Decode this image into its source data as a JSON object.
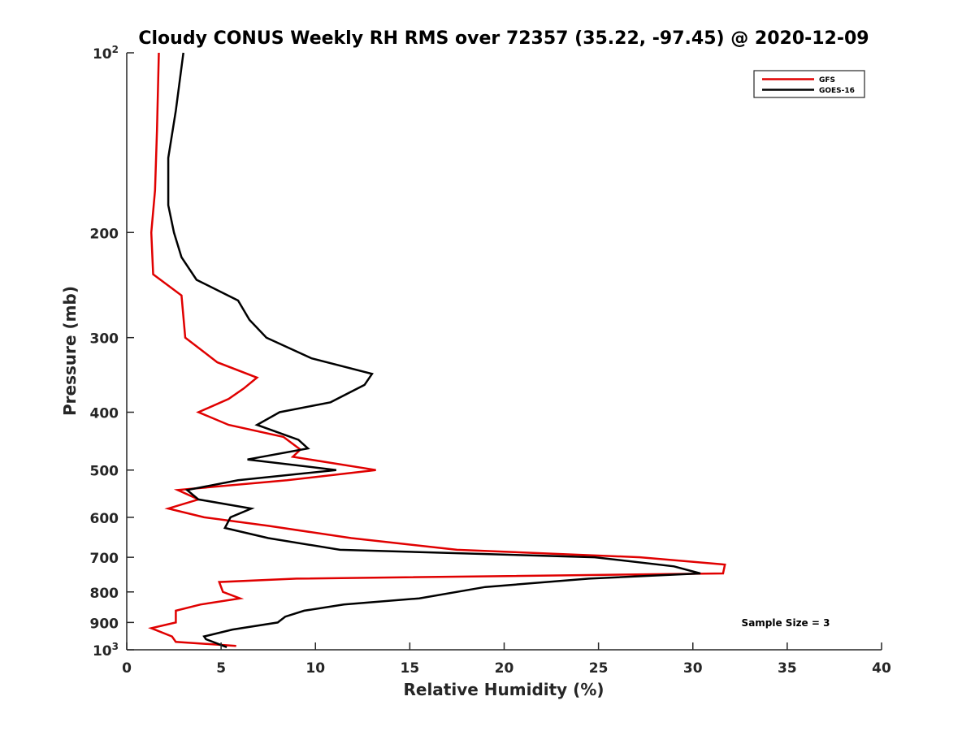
{
  "chart_data": {
    "type": "line",
    "title": "Cloudy CONUS Weekly RH RMS over 72357 (35.22, -97.45) @ 2020-12-09",
    "xlabel": "Relative Humidity (%)",
    "ylabel": "Pressure (mb)",
    "xlim": [
      0,
      40
    ],
    "ylim": [
      100,
      1000
    ],
    "y_scale": "log",
    "y_reversed": true,
    "grid": false,
    "legend_position": "top-right",
    "x_ticks": [
      "0",
      "5",
      "10",
      "15",
      "20",
      "25",
      "30",
      "35",
      "40"
    ],
    "y_ticks": [
      {
        "value": 100,
        "label": "10",
        "sup": "2"
      },
      {
        "value": 200,
        "label": "200",
        "sup": ""
      },
      {
        "value": 300,
        "label": "300",
        "sup": ""
      },
      {
        "value": 400,
        "label": "400",
        "sup": ""
      },
      {
        "value": 500,
        "label": "500",
        "sup": ""
      },
      {
        "value": 600,
        "label": "600",
        "sup": ""
      },
      {
        "value": 700,
        "label": "700",
        "sup": ""
      },
      {
        "value": 800,
        "label": "800",
        "sup": ""
      },
      {
        "value": 900,
        "label": "900",
        "sup": ""
      },
      {
        "value": 1000,
        "label": "10",
        "sup": "3"
      }
    ],
    "annotation": "Sample Size = 3",
    "series": [
      {
        "name": "GFS",
        "color": "#e00000",
        "points": [
          [
            1.7,
            100
          ],
          [
            1.6,
            135
          ],
          [
            1.5,
            170
          ],
          [
            1.3,
            200
          ],
          [
            1.4,
            235
          ],
          [
            2.9,
            255
          ],
          [
            3.1,
            300
          ],
          [
            4.8,
            330
          ],
          [
            6.9,
            350
          ],
          [
            6.2,
            365
          ],
          [
            5.4,
            380
          ],
          [
            3.8,
            400
          ],
          [
            5.4,
            420
          ],
          [
            8.3,
            440
          ],
          [
            9.2,
            462
          ],
          [
            8.8,
            475
          ],
          [
            13.2,
            500
          ],
          [
            8.5,
            520
          ],
          [
            2.7,
            540
          ],
          [
            3.8,
            560
          ],
          [
            2.2,
            580
          ],
          [
            4.1,
            600
          ],
          [
            7.5,
            620
          ],
          [
            11.9,
            650
          ],
          [
            17.5,
            680
          ],
          [
            27.2,
            700
          ],
          [
            31.7,
            720
          ],
          [
            31.6,
            745
          ],
          [
            9.0,
            760
          ],
          [
            4.9,
            770
          ],
          [
            5.1,
            800
          ],
          [
            6.0,
            820
          ],
          [
            3.9,
            840
          ],
          [
            2.6,
            860
          ],
          [
            2.6,
            900
          ],
          [
            1.3,
            920
          ],
          [
            2.4,
            950
          ],
          [
            2.6,
            970
          ],
          [
            5.8,
            985
          ]
        ]
      },
      {
        "name": "GOES-16",
        "color": "#000000",
        "points": [
          [
            3.0,
            100
          ],
          [
            2.6,
            125
          ],
          [
            2.2,
            150
          ],
          [
            2.2,
            180
          ],
          [
            2.5,
            200
          ],
          [
            2.9,
            220
          ],
          [
            3.7,
            240
          ],
          [
            5.9,
            260
          ],
          [
            6.5,
            280
          ],
          [
            7.4,
            300
          ],
          [
            9.8,
            325
          ],
          [
            13.0,
            345
          ],
          [
            12.6,
            360
          ],
          [
            10.8,
            385
          ],
          [
            8.1,
            400
          ],
          [
            6.9,
            420
          ],
          [
            9.1,
            445
          ],
          [
            9.6,
            460
          ],
          [
            6.4,
            480
          ],
          [
            11.1,
            500
          ],
          [
            5.9,
            520
          ],
          [
            3.2,
            540
          ],
          [
            3.8,
            560
          ],
          [
            6.6,
            580
          ],
          [
            5.5,
            600
          ],
          [
            5.2,
            625
          ],
          [
            7.5,
            650
          ],
          [
            11.3,
            680
          ],
          [
            24.8,
            700
          ],
          [
            29.0,
            725
          ],
          [
            30.4,
            745
          ],
          [
            24.5,
            760
          ],
          [
            19.0,
            785
          ],
          [
            15.5,
            820
          ],
          [
            11.5,
            840
          ],
          [
            9.4,
            860
          ],
          [
            8.4,
            880
          ],
          [
            8.0,
            900
          ],
          [
            5.6,
            925
          ],
          [
            4.1,
            950
          ],
          [
            4.2,
            960
          ],
          [
            5.3,
            990
          ]
        ]
      }
    ]
  }
}
